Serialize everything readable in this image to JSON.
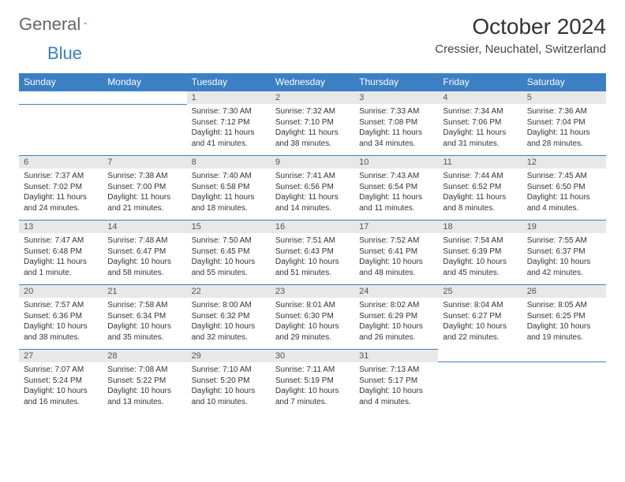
{
  "logo": {
    "text1": "General",
    "text2": "Blue"
  },
  "title": "October 2024",
  "location": "Cressier, Neuchatel, Switzerland",
  "colors": {
    "header_bg": "#3b7fc4",
    "header_text": "#ffffff",
    "daynum_bg": "#e8e8e8",
    "daynum_border": "#3b7fc4",
    "text": "#333333",
    "background": "#ffffff"
  },
  "weekdays": [
    "Sunday",
    "Monday",
    "Tuesday",
    "Wednesday",
    "Thursday",
    "Friday",
    "Saturday"
  ],
  "weeks": [
    [
      null,
      null,
      {
        "n": "1",
        "sr": "Sunrise: 7:30 AM",
        "ss": "Sunset: 7:12 PM",
        "dl": "Daylight: 11 hours and 41 minutes."
      },
      {
        "n": "2",
        "sr": "Sunrise: 7:32 AM",
        "ss": "Sunset: 7:10 PM",
        "dl": "Daylight: 11 hours and 38 minutes."
      },
      {
        "n": "3",
        "sr": "Sunrise: 7:33 AM",
        "ss": "Sunset: 7:08 PM",
        "dl": "Daylight: 11 hours and 34 minutes."
      },
      {
        "n": "4",
        "sr": "Sunrise: 7:34 AM",
        "ss": "Sunset: 7:06 PM",
        "dl": "Daylight: 11 hours and 31 minutes."
      },
      {
        "n": "5",
        "sr": "Sunrise: 7:36 AM",
        "ss": "Sunset: 7:04 PM",
        "dl": "Daylight: 11 hours and 28 minutes."
      }
    ],
    [
      {
        "n": "6",
        "sr": "Sunrise: 7:37 AM",
        "ss": "Sunset: 7:02 PM",
        "dl": "Daylight: 11 hours and 24 minutes."
      },
      {
        "n": "7",
        "sr": "Sunrise: 7:38 AM",
        "ss": "Sunset: 7:00 PM",
        "dl": "Daylight: 11 hours and 21 minutes."
      },
      {
        "n": "8",
        "sr": "Sunrise: 7:40 AM",
        "ss": "Sunset: 6:58 PM",
        "dl": "Daylight: 11 hours and 18 minutes."
      },
      {
        "n": "9",
        "sr": "Sunrise: 7:41 AM",
        "ss": "Sunset: 6:56 PM",
        "dl": "Daylight: 11 hours and 14 minutes."
      },
      {
        "n": "10",
        "sr": "Sunrise: 7:43 AM",
        "ss": "Sunset: 6:54 PM",
        "dl": "Daylight: 11 hours and 11 minutes."
      },
      {
        "n": "11",
        "sr": "Sunrise: 7:44 AM",
        "ss": "Sunset: 6:52 PM",
        "dl": "Daylight: 11 hours and 8 minutes."
      },
      {
        "n": "12",
        "sr": "Sunrise: 7:45 AM",
        "ss": "Sunset: 6:50 PM",
        "dl": "Daylight: 11 hours and 4 minutes."
      }
    ],
    [
      {
        "n": "13",
        "sr": "Sunrise: 7:47 AM",
        "ss": "Sunset: 6:48 PM",
        "dl": "Daylight: 11 hours and 1 minute."
      },
      {
        "n": "14",
        "sr": "Sunrise: 7:48 AM",
        "ss": "Sunset: 6:47 PM",
        "dl": "Daylight: 10 hours and 58 minutes."
      },
      {
        "n": "15",
        "sr": "Sunrise: 7:50 AM",
        "ss": "Sunset: 6:45 PM",
        "dl": "Daylight: 10 hours and 55 minutes."
      },
      {
        "n": "16",
        "sr": "Sunrise: 7:51 AM",
        "ss": "Sunset: 6:43 PM",
        "dl": "Daylight: 10 hours and 51 minutes."
      },
      {
        "n": "17",
        "sr": "Sunrise: 7:52 AM",
        "ss": "Sunset: 6:41 PM",
        "dl": "Daylight: 10 hours and 48 minutes."
      },
      {
        "n": "18",
        "sr": "Sunrise: 7:54 AM",
        "ss": "Sunset: 6:39 PM",
        "dl": "Daylight: 10 hours and 45 minutes."
      },
      {
        "n": "19",
        "sr": "Sunrise: 7:55 AM",
        "ss": "Sunset: 6:37 PM",
        "dl": "Daylight: 10 hours and 42 minutes."
      }
    ],
    [
      {
        "n": "20",
        "sr": "Sunrise: 7:57 AM",
        "ss": "Sunset: 6:36 PM",
        "dl": "Daylight: 10 hours and 38 minutes."
      },
      {
        "n": "21",
        "sr": "Sunrise: 7:58 AM",
        "ss": "Sunset: 6:34 PM",
        "dl": "Daylight: 10 hours and 35 minutes."
      },
      {
        "n": "22",
        "sr": "Sunrise: 8:00 AM",
        "ss": "Sunset: 6:32 PM",
        "dl": "Daylight: 10 hours and 32 minutes."
      },
      {
        "n": "23",
        "sr": "Sunrise: 8:01 AM",
        "ss": "Sunset: 6:30 PM",
        "dl": "Daylight: 10 hours and 29 minutes."
      },
      {
        "n": "24",
        "sr": "Sunrise: 8:02 AM",
        "ss": "Sunset: 6:29 PM",
        "dl": "Daylight: 10 hours and 26 minutes."
      },
      {
        "n": "25",
        "sr": "Sunrise: 8:04 AM",
        "ss": "Sunset: 6:27 PM",
        "dl": "Daylight: 10 hours and 22 minutes."
      },
      {
        "n": "26",
        "sr": "Sunrise: 8:05 AM",
        "ss": "Sunset: 6:25 PM",
        "dl": "Daylight: 10 hours and 19 minutes."
      }
    ],
    [
      {
        "n": "27",
        "sr": "Sunrise: 7:07 AM",
        "ss": "Sunset: 5:24 PM",
        "dl": "Daylight: 10 hours and 16 minutes."
      },
      {
        "n": "28",
        "sr": "Sunrise: 7:08 AM",
        "ss": "Sunset: 5:22 PM",
        "dl": "Daylight: 10 hours and 13 minutes."
      },
      {
        "n": "29",
        "sr": "Sunrise: 7:10 AM",
        "ss": "Sunset: 5:20 PM",
        "dl": "Daylight: 10 hours and 10 minutes."
      },
      {
        "n": "30",
        "sr": "Sunrise: 7:11 AM",
        "ss": "Sunset: 5:19 PM",
        "dl": "Daylight: 10 hours and 7 minutes."
      },
      {
        "n": "31",
        "sr": "Sunrise: 7:13 AM",
        "ss": "Sunset: 5:17 PM",
        "dl": "Daylight: 10 hours and 4 minutes."
      },
      null,
      null
    ]
  ]
}
